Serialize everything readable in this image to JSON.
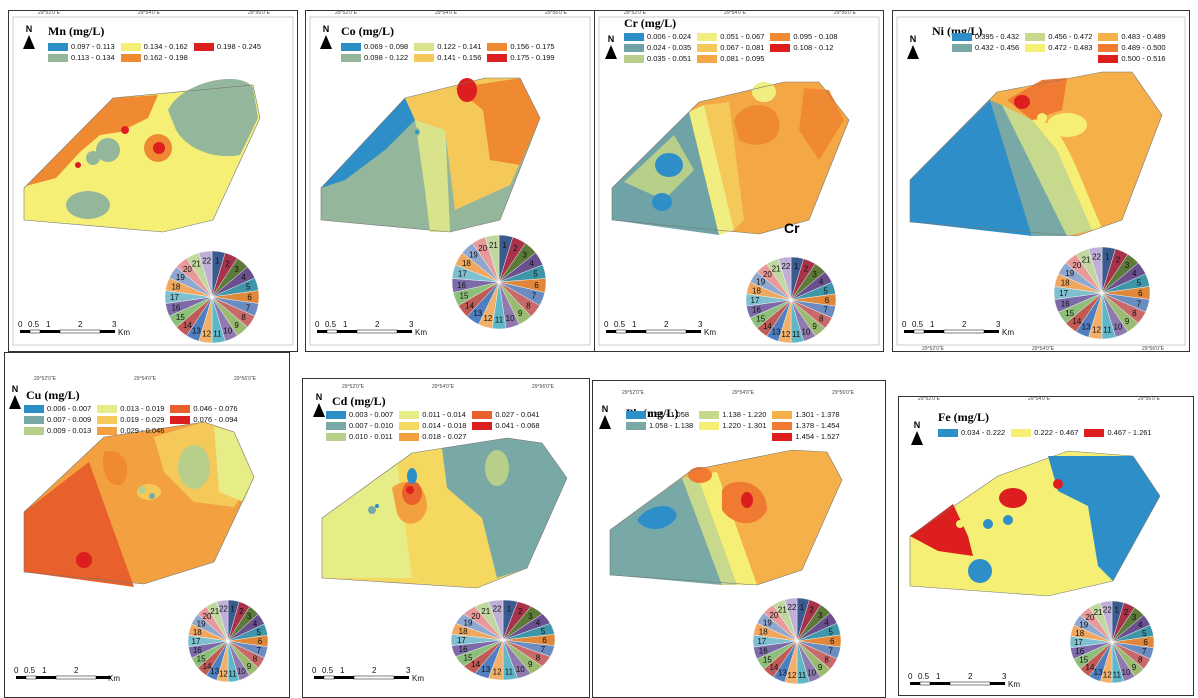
{
  "north_label": "N",
  "scale_labels": [
    "0",
    "0.5",
    "1",
    "2",
    "3"
  ],
  "scale_unit": "Km",
  "top_coords": [
    "29°52'0\"E",
    "29°54'0\"E",
    "29°56'0\"E"
  ],
  "side_coord": "31°4'0\"N",
  "pie_colors": [
    "#3b5b8f",
    "#a8324a",
    "#5d7a3a",
    "#6a4f8f",
    "#3e96a8",
    "#e0873a",
    "#6a8cc0",
    "#c86a6a",
    "#9bba72",
    "#8f7ab0",
    "#5fb7c7",
    "#f2b06a",
    "#4f7fc0",
    "#c05a55",
    "#8cbf7a",
    "#7d6aa8",
    "#7fc0d0",
    "#f0a860",
    "#8fa8d0",
    "#e89a9a",
    "#c0d8a0",
    "#c0b0d8"
  ],
  "panels": [
    {
      "id": "mn",
      "title": "Mn (mg/L)",
      "legend": [
        {
          "label": "0.097 - 0.113",
          "color": "#2e8fc8"
        },
        {
          "label": "0.134 - 0.162",
          "color": "#f5f075"
        },
        {
          "label": "0.198 - 0.245",
          "color": "#dc1e1e"
        },
        {
          "label": "0.113 - 0.134",
          "color": "#94b79b"
        },
        {
          "label": "0.162 - 0.198",
          "color": "#f08a32"
        }
      ],
      "pie_labels": [
        "1",
        "2",
        "3",
        "4",
        "5",
        "6",
        "7",
        "8",
        "9",
        "10",
        "11",
        "12",
        "13",
        "14",
        "15",
        "16",
        "17",
        "18",
        "19",
        "20",
        "21",
        "22"
      ]
    },
    {
      "id": "co",
      "title": "Co (mg/L)",
      "legend": [
        {
          "label": "0.069 - 0.098",
          "color": "#2e8fc8"
        },
        {
          "label": "0.122 - 0.141",
          "color": "#d9e38c"
        },
        {
          "label": "0.156 - 0.175",
          "color": "#f08a32"
        },
        {
          "label": "0.098 - 0.122",
          "color": "#94b79b"
        },
        {
          "label": "0.141 - 0.156",
          "color": "#f5c85a"
        },
        {
          "label": "0.175 - 0.199",
          "color": "#dc1e1e"
        }
      ],
      "pie_labels": [
        "1",
        "2",
        "3",
        "4",
        "5",
        "6",
        "7",
        "8",
        "9",
        "10",
        "11",
        "12",
        "13",
        "14",
        "15",
        "16",
        "17",
        "18",
        "19",
        "20",
        "21"
      ]
    },
    {
      "id": "cr",
      "title": "Cr (mg/L)",
      "pie_title": "Cr",
      "legend": [
        {
          "label": "0.006 - 0.024",
          "color": "#2e8fc8"
        },
        {
          "label": "0.051 - 0.067",
          "color": "#f0ee80"
        },
        {
          "label": "0.095 - 0.108",
          "color": "#f08a32"
        },
        {
          "label": "0.024 - 0.035",
          "color": "#6fa3a6"
        },
        {
          "label": "0.067 - 0.081",
          "color": "#f5c85a"
        },
        {
          "label": "0.108 - 0.12",
          "color": "#dc1e1e"
        },
        {
          "label": "0.035 - 0.051",
          "color": "#b8cf8c"
        },
        {
          "label": "0.081 - 0.095",
          "color": "#f3a845"
        }
      ],
      "pie_labels": [
        "1",
        "2",
        "3",
        "4",
        "5",
        "6",
        "7",
        "8",
        "9",
        "10",
        "11",
        "12",
        "13",
        "14",
        "15",
        "16",
        "17",
        "18",
        "19",
        "20",
        "21",
        "22"
      ]
    },
    {
      "id": "ni",
      "title": "Ni (mg/L)",
      "legend": [
        {
          "label": "0.395 - 0.432",
          "color": "#2e8fc8"
        },
        {
          "label": "0.456 - 0.472",
          "color": "#c6d98c"
        },
        {
          "label": "0.483 - 0.489",
          "color": "#f5b04a"
        },
        {
          "label": "0.432 - 0.456",
          "color": "#79a9a6"
        },
        {
          "label": "0.472 - 0.483",
          "color": "#f5f075"
        },
        {
          "label": "0.489 - 0.500",
          "color": "#f07a32"
        },
        {
          "label": "",
          "color": ""
        },
        {
          "label": "",
          "color": ""
        },
        {
          "label": "0.500 - 0.516",
          "color": "#dc1e1e"
        }
      ],
      "pie_labels": [
        "1",
        "2",
        "3",
        "4",
        "5",
        "6",
        "7",
        "8",
        "9",
        "10",
        "11",
        "12",
        "13",
        "14",
        "15",
        "16",
        "17",
        "18",
        "19",
        "20",
        "21",
        "22"
      ]
    },
    {
      "id": "cu",
      "title": "Cu (mg/L)",
      "legend": [
        {
          "label": "0.006 - 0.007",
          "color": "#2e8fc8"
        },
        {
          "label": "0.013 - 0.019",
          "color": "#e6ec86"
        },
        {
          "label": "0.046 - 0.076",
          "color": "#e8602c"
        },
        {
          "label": "0.007 - 0.009",
          "color": "#79a9a6"
        },
        {
          "label": "0.019 - 0.029",
          "color": "#f5c85a"
        },
        {
          "label": "0.076 - 0.094",
          "color": "#dc1e1e"
        },
        {
          "label": "0.009 - 0.013",
          "color": "#b8cf8c"
        },
        {
          "label": "0.029 - 0.046",
          "color": "#f3a040"
        }
      ],
      "pie_labels": [
        "1",
        "2",
        "3",
        "4",
        "5",
        "6",
        "7",
        "8",
        "9",
        "10",
        "11",
        "12",
        "13",
        "14",
        "15",
        "16",
        "17",
        "18",
        "19",
        "20",
        "21",
        "22"
      ]
    },
    {
      "id": "cd",
      "title": "Cd (mg/L)",
      "legend": [
        {
          "label": "0.003 - 0.007",
          "color": "#2e8fc8"
        },
        {
          "label": "0.011 - 0.014",
          "color": "#e6ec86"
        },
        {
          "label": "0.027 - 0.041",
          "color": "#e8602c"
        },
        {
          "label": "0.007 - 0.010",
          "color": "#79a9a6"
        },
        {
          "label": "0.014 - 0.018",
          "color": "#f5d860"
        },
        {
          "label": "0.041 - 0.068",
          "color": "#dc1e1e"
        },
        {
          "label": "0.010 - 0.011",
          "color": "#b8cf8c"
        },
        {
          "label": "0.018 - 0.027",
          "color": "#f3a040"
        }
      ],
      "pie_labels": [
        "1",
        "2",
        "3",
        "4",
        "5",
        "6",
        "7",
        "8",
        "9",
        "10",
        "11",
        "12",
        "13",
        "14",
        "15",
        "16",
        "17",
        "18",
        "19",
        "20",
        "21",
        "22"
      ]
    },
    {
      "id": "pb",
      "title": "Pb (mg/L)",
      "legend": [
        {
          "label": "0.98 - 1.058",
          "color": "#2e8fc8"
        },
        {
          "label": "1.138 - 1.220",
          "color": "#c6d98c"
        },
        {
          "label": "1.301 - 1.378",
          "color": "#f5b04a"
        },
        {
          "label": "1.058 - 1.138",
          "color": "#79a9a6"
        },
        {
          "label": "1.220 - 1.301",
          "color": "#f5f075"
        },
        {
          "label": "1.378 - 1.454",
          "color": "#f07a32"
        },
        {
          "label": "",
          "color": ""
        },
        {
          "label": "",
          "color": ""
        },
        {
          "label": "1.454 - 1.527",
          "color": "#dc1e1e"
        }
      ],
      "pie_labels": [
        "1",
        "2",
        "3",
        "4",
        "5",
        "6",
        "7",
        "8",
        "9",
        "10",
        "11",
        "12",
        "13",
        "14",
        "15",
        "16",
        "17",
        "18",
        "19",
        "20",
        "21",
        "22"
      ]
    },
    {
      "id": "fe",
      "title": "Fe (mg/L)",
      "legend": [
        {
          "label": "0.034 - 0.222",
          "color": "#2e8fc8"
        },
        {
          "label": "0.222 - 0.467",
          "color": "#f5f075"
        },
        {
          "label": "0.467 - 1.261",
          "color": "#dc1e1e"
        }
      ],
      "pie_labels": [
        "1",
        "2",
        "3",
        "4",
        "5",
        "6",
        "7",
        "8",
        "9",
        "10",
        "11",
        "12",
        "13",
        "14",
        "15",
        "16",
        "17",
        "18",
        "19",
        "20",
        "21",
        "22"
      ]
    }
  ]
}
